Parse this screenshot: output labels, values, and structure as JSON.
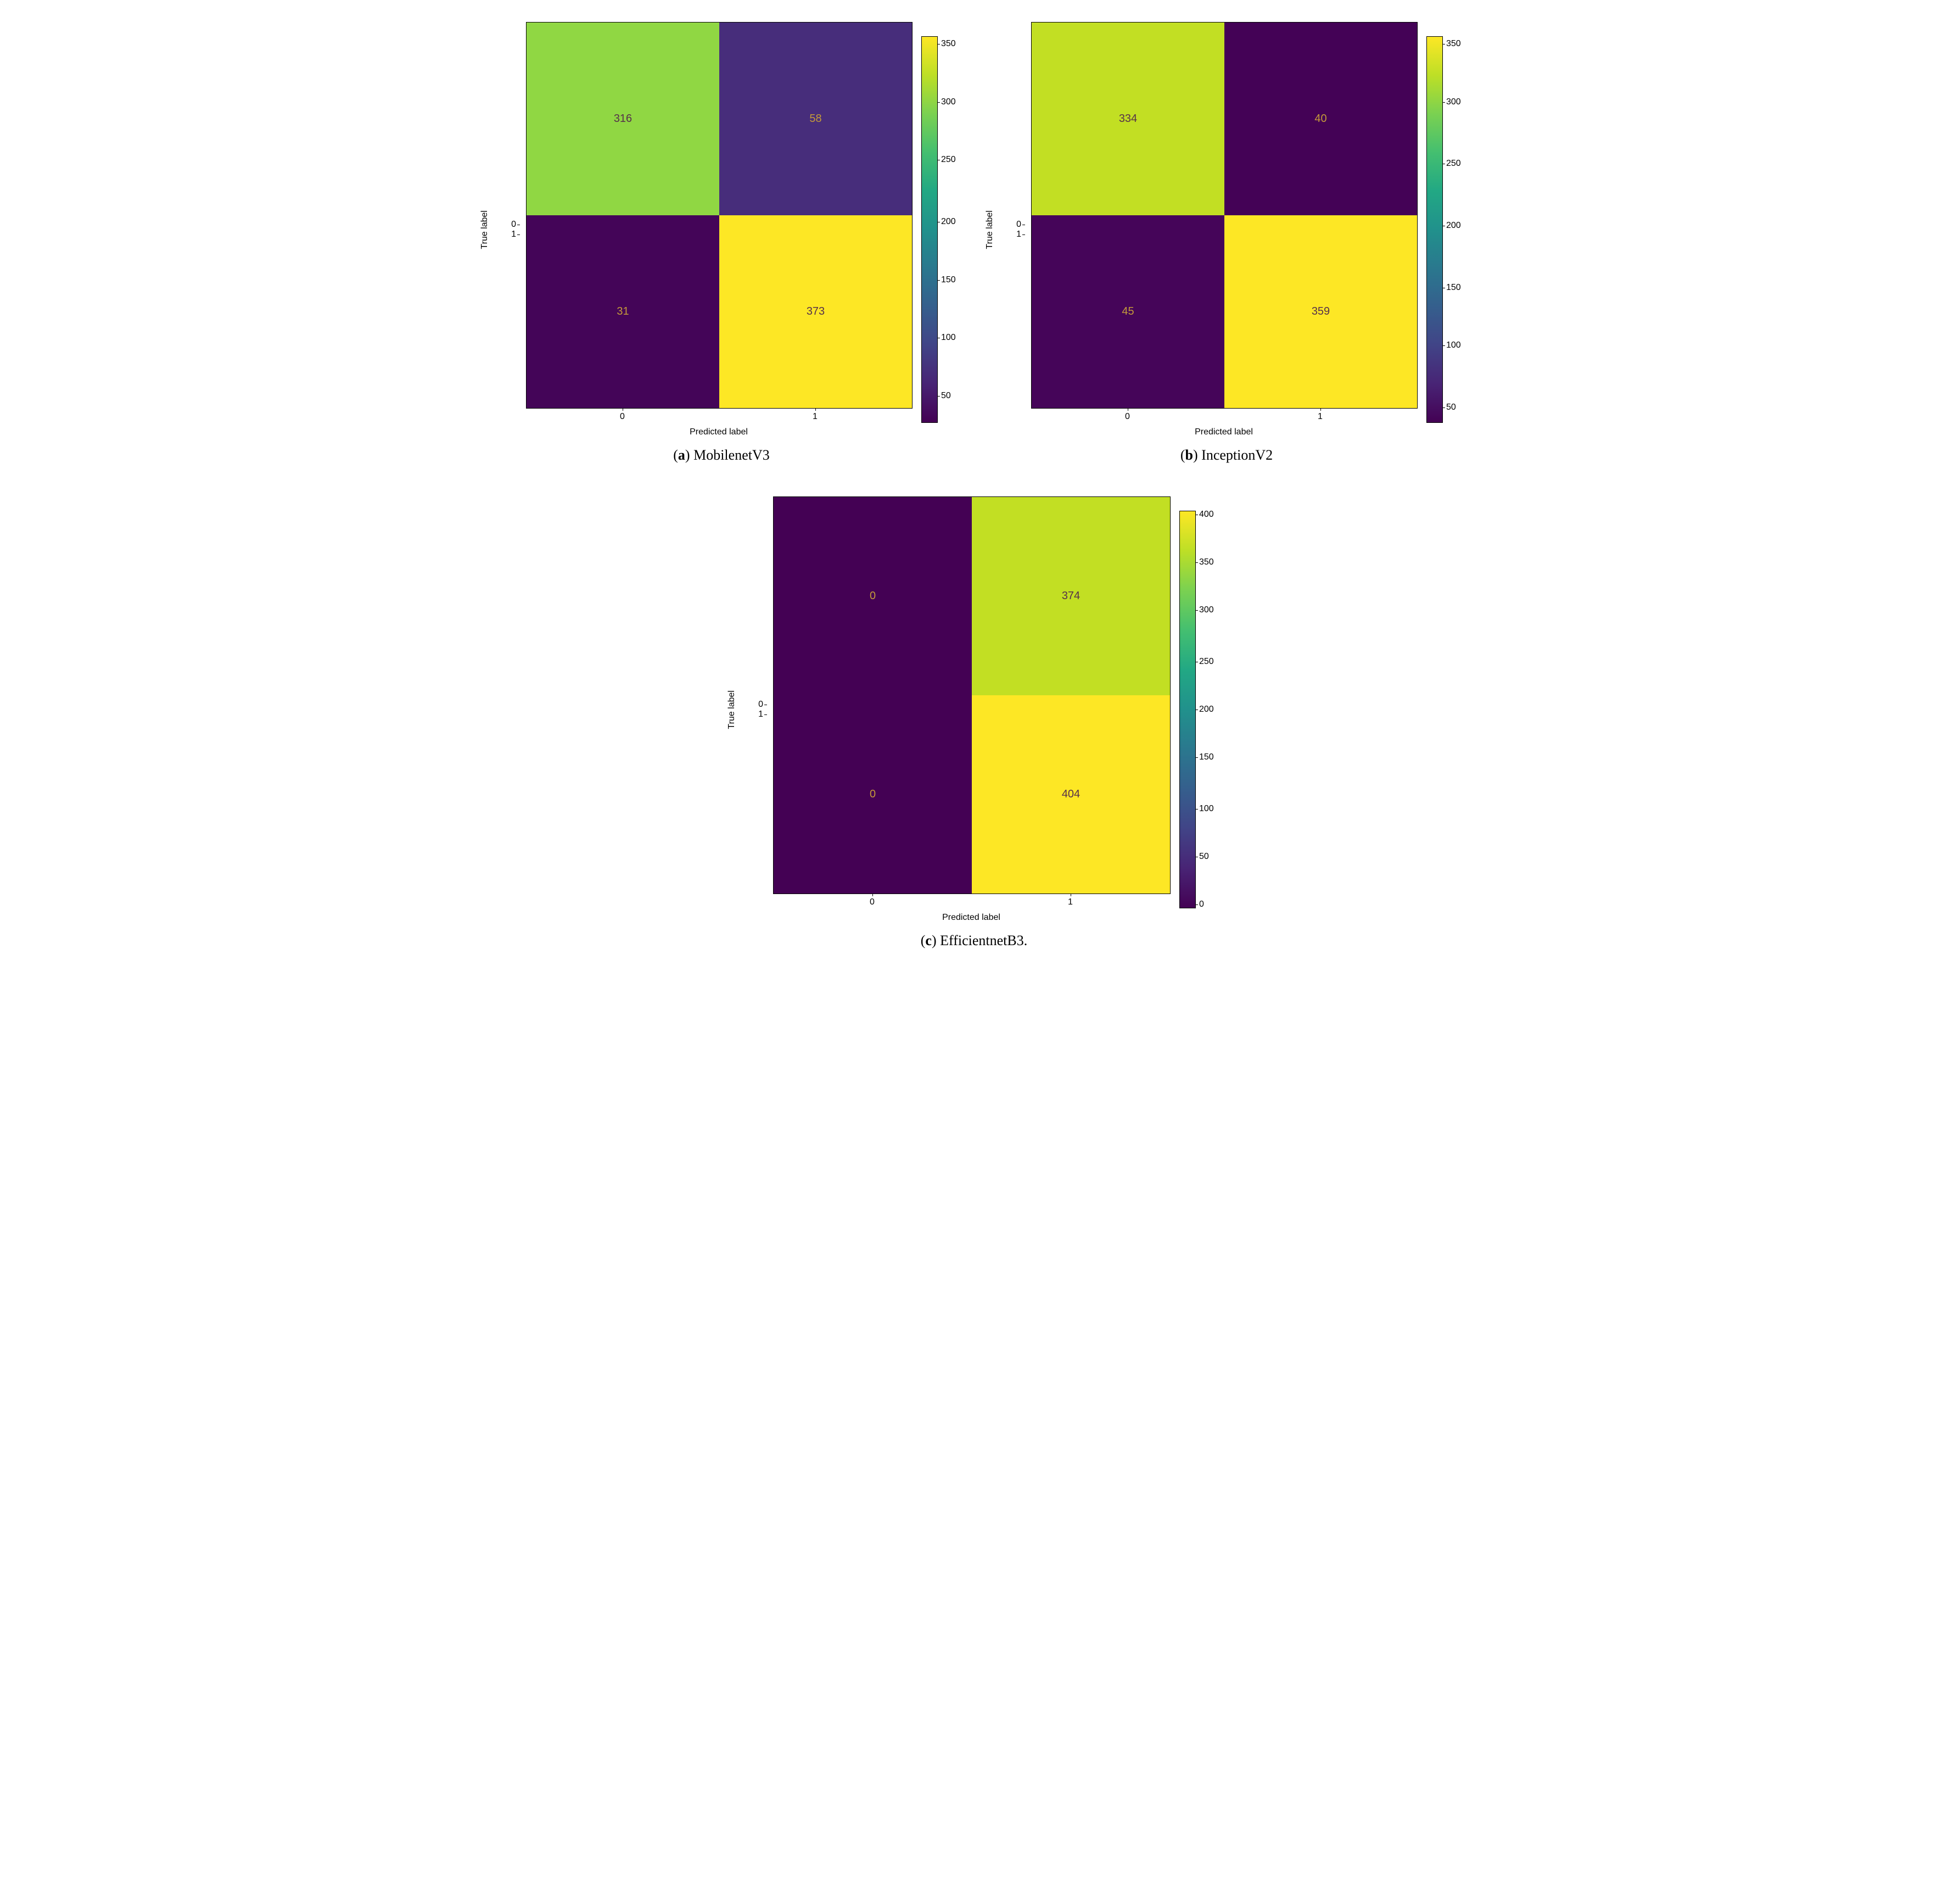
{
  "axis_labels": {
    "x": "Predicted label",
    "y": "True label",
    "ticks": [
      "0",
      "1"
    ]
  },
  "viridis_gradient": "linear-gradient(to top, #440154, #482475, #414487, #355f8d, #2a788e, #21918c, #22a884, #44bf70, #7ad151, #bddf26, #fde725)",
  "cell_text_colors": {
    "light": "#c49a3a",
    "dark": "#55304a"
  },
  "panels": {
    "a": {
      "caption_letter": "a",
      "caption_text": "MobilenetV3",
      "type": "confusion_matrix",
      "values": [
        [
          316,
          58
        ],
        [
          31,
          373
        ]
      ],
      "cell_colors": [
        [
          "#90d743",
          "#472d7b"
        ],
        [
          "#440558",
          "#fde725"
        ]
      ],
      "value_text_colors": [
        [
          "dark",
          "light"
        ],
        [
          "light",
          "dark"
        ]
      ],
      "colorbar_ticks": [
        "350",
        "300",
        "250",
        "200",
        "150",
        "100",
        "50"
      ],
      "colorbar_tick_positions_pct": [
        2,
        17,
        32,
        48,
        63,
        78,
        93
      ]
    },
    "b": {
      "caption_letter": "b",
      "caption_text": "InceptionV2",
      "type": "confusion_matrix",
      "values": [
        [
          334,
          40
        ],
        [
          45,
          359
        ]
      ],
      "cell_colors": [
        [
          "#c2df23",
          "#440256"
        ],
        [
          "#450559",
          "#fde725"
        ]
      ],
      "value_text_colors": [
        [
          "dark",
          "light"
        ],
        [
          "light",
          "dark"
        ]
      ],
      "colorbar_ticks": [
        "350",
        "300",
        "250",
        "200",
        "150",
        "100",
        "50"
      ],
      "colorbar_tick_positions_pct": [
        2,
        17,
        33,
        49,
        65,
        80,
        96
      ]
    },
    "c": {
      "caption_letter": "c",
      "caption_text": "EfficientnetB3.",
      "type": "confusion_matrix",
      "values": [
        [
          0,
          374
        ],
        [
          0,
          404
        ]
      ],
      "cell_colors": [
        [
          "#440154",
          "#c2df23"
        ],
        [
          "#440154",
          "#fde725"
        ]
      ],
      "value_text_colors": [
        [
          "light",
          "dark"
        ],
        [
          "light",
          "dark"
        ]
      ],
      "colorbar_ticks": [
        "400",
        "350",
        "300",
        "250",
        "200",
        "150",
        "100",
        "50",
        "0"
      ],
      "colorbar_tick_positions_pct": [
        1,
        13,
        25,
        38,
        50,
        62,
        75,
        87,
        99
      ]
    }
  },
  "chart_style": {
    "axis_fontsize": 16,
    "cell_fontsize": 20,
    "caption_fontsize": 26,
    "background_color": "#ffffff",
    "border_color": "#000000"
  }
}
